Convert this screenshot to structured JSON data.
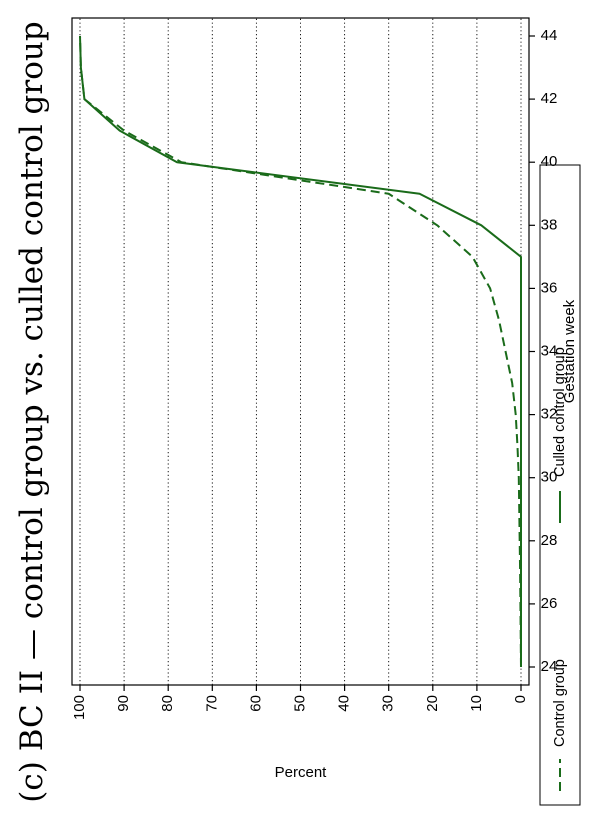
{
  "chart_data": {
    "type": "line",
    "title": "(c) BC II — control group vs. culled control group",
    "xlabel": "Gestation week",
    "ylabel": "Percent",
    "xlim": [
      24,
      44
    ],
    "ylim": [
      0,
      100
    ],
    "xticks": [
      "24",
      "26",
      "28",
      "30",
      "32",
      "34",
      "36",
      "38",
      "40",
      "42",
      "44"
    ],
    "yticks": [
      "0",
      "10",
      "20",
      "30",
      "40",
      "50",
      "60",
      "70",
      "80",
      "90",
      "100"
    ],
    "grid": "dotted horizontal at each y tick",
    "orientation": "rotated 90° counter-clockwise",
    "legend_position": "bottom",
    "colors": {
      "series": "#1a6b1a",
      "axis": "#000000",
      "grid": "#000000"
    },
    "series": [
      {
        "name": "Control group",
        "style": "dashed",
        "x": [
          24,
          27,
          28,
          29,
          30,
          31,
          32,
          33,
          34,
          35,
          36,
          37,
          38,
          39,
          40,
          41,
          42,
          43,
          44
        ],
        "values": [
          0,
          0.2,
          0.3,
          0.4,
          0.5,
          0.8,
          1.2,
          2,
          3.5,
          5,
          7,
          11,
          19,
          30,
          77,
          90,
          99,
          99.8,
          100
        ]
      },
      {
        "name": "Culled control group",
        "style": "solid",
        "x": [
          24,
          36,
          37,
          38,
          39,
          40,
          41,
          42,
          43,
          44
        ],
        "values": [
          0,
          0,
          0,
          9,
          23,
          78,
          91,
          99,
          99.8,
          100
        ]
      }
    ]
  }
}
